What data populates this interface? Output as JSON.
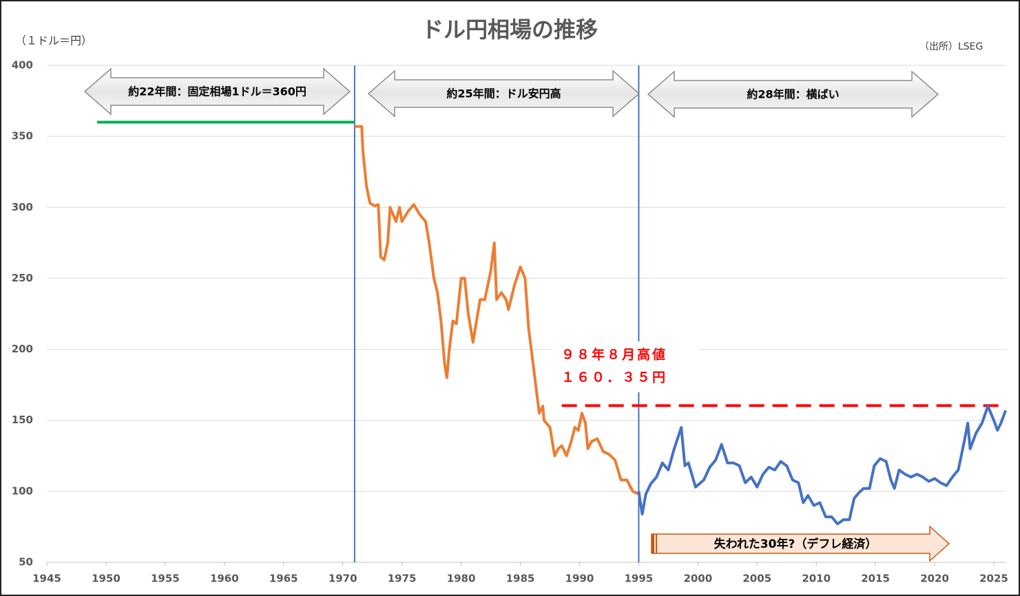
{
  "chart_data": {
    "type": "line",
    "title": "ドル円相場の推移",
    "y_unit_label": "（１ドル＝円）",
    "source": "（出所）LSEG",
    "xlim": [
      1945,
      2026
    ],
    "xticks": [
      1945,
      1950,
      1955,
      1960,
      1965,
      1970,
      1975,
      1980,
      1985,
      1990,
      1995,
      2000,
      2005,
      2010,
      2015,
      2020,
      2025
    ],
    "ylim": [
      50,
      400
    ],
    "yticks": [
      50,
      100,
      150,
      200,
      250,
      300,
      350,
      400
    ],
    "grid": true,
    "series": [
      {
        "color": "#00b050",
        "x": [
          1949.25,
          1971.0
        ],
        "values": [
          360,
          360
        ]
      },
      {
        "color": "#ed7d31",
        "x": [
          1971.0,
          1971.6,
          1971.7,
          1972.0,
          1972.3,
          1972.7,
          1973.0,
          1973.2,
          1973.5,
          1973.8,
          1974.0,
          1974.5,
          1974.8,
          1975.0,
          1975.5,
          1976.0,
          1976.5,
          1977.0,
          1977.3,
          1977.7,
          1978.0,
          1978.3,
          1978.6,
          1978.8,
          1979.0,
          1979.3,
          1979.6,
          1980.0,
          1980.3,
          1980.6,
          1981.0,
          1981.3,
          1981.6,
          1982.0,
          1982.5,
          1982.8,
          1983.0,
          1983.4,
          1983.8,
          1984.0,
          1984.5,
          1985.0,
          1985.4,
          1985.7,
          1986.0,
          1986.3,
          1986.6,
          1986.9,
          1987.0,
          1987.5,
          1987.9,
          1988.2,
          1988.5,
          1988.9,
          1989.3,
          1989.6,
          1989.9,
          1990.2,
          1990.5,
          1990.7,
          1991.0,
          1991.5,
          1992.0,
          1992.5,
          1993.0,
          1993.5,
          1994.0,
          1994.5,
          1995.0
        ],
        "values": [
          357,
          357,
          340,
          315,
          303,
          301,
          302,
          265,
          263,
          275,
          300,
          290,
          300,
          290,
          297,
          302,
          295,
          290,
          275,
          250,
          240,
          220,
          190,
          180,
          200,
          220,
          218,
          250,
          250,
          225,
          205,
          220,
          235,
          235,
          255,
          275,
          235,
          240,
          235,
          228,
          245,
          258,
          250,
          215,
          195,
          175,
          155,
          160,
          150,
          145,
          125,
          130,
          132,
          125,
          135,
          145,
          143,
          155,
          148,
          130,
          135,
          137,
          128,
          126,
          122,
          108,
          108,
          100,
          98
        ]
      },
      {
        "color": "#4472c4",
        "x": [
          1995.0,
          1995.3,
          1995.6,
          1996.0,
          1996.5,
          1997.0,
          1997.5,
          1998.0,
          1998.6,
          1998.9,
          1999.2,
          1999.8,
          2000.5,
          2001.0,
          2001.5,
          2002.0,
          2002.5,
          2003.0,
          2003.5,
          2004.0,
          2004.5,
          2005.0,
          2005.5,
          2006.0,
          2006.5,
          2007.0,
          2007.5,
          2008.0,
          2008.5,
          2008.9,
          2009.3,
          2009.8,
          2010.3,
          2010.8,
          2011.3,
          2011.8,
          2012.3,
          2012.8,
          2013.2,
          2013.6,
          2014.0,
          2014.5,
          2014.9,
          2015.4,
          2015.9,
          2016.3,
          2016.6,
          2017.0,
          2017.5,
          2018.0,
          2018.5,
          2019.0,
          2019.5,
          2020.0,
          2020.5,
          2021.0,
          2021.5,
          2022.0,
          2022.5,
          2022.8,
          2023.0,
          2023.5,
          2024.0,
          2024.5,
          2025.0,
          2025.3,
          2025.6,
          2026.0
        ],
        "values": [
          100,
          84,
          98,
          105,
          110,
          120,
          115,
          130,
          145,
          118,
          120,
          103,
          108,
          117,
          122,
          133,
          120,
          120,
          118,
          106,
          110,
          103,
          112,
          117,
          115,
          121,
          118,
          108,
          106,
          92,
          97,
          90,
          92,
          82,
          82,
          77,
          80,
          80,
          95,
          99,
          102,
          102,
          118,
          123,
          121,
          108,
          102,
          115,
          112,
          110,
          112,
          110,
          107,
          109,
          106,
          104,
          110,
          115,
          135,
          148,
          130,
          141,
          148,
          160,
          150,
          143,
          148,
          157
        ]
      }
    ],
    "reference_line": {
      "color": "#ff0000",
      "x": [
        1988.5,
        2026
      ],
      "value": 160.35
    },
    "vlines": {
      "color": "#4472c4",
      "x": [
        1971,
        1995
      ]
    },
    "arrows": [
      "約22年間：固定相場1ドル＝360円",
      "約25年間：ドル安円高",
      "約28年間：横ばい"
    ],
    "note_red": [
      "９８年８月高値",
      "１６０．３５円"
    ],
    "note_bottom": "失われた30年?（デフレ経済）"
  }
}
